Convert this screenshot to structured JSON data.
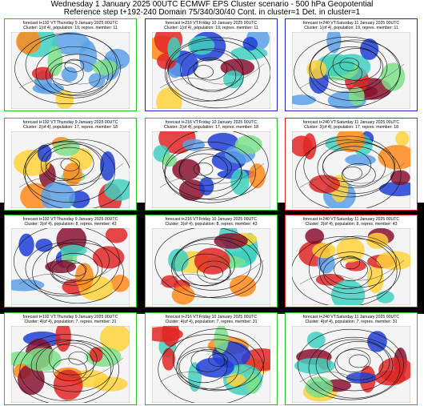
{
  "header": {
    "title": "Wednesday 1 January 2025 00UTC ECMWF EPS Cluster scenario - 500 hPa Geopotential",
    "subtitle": "Reference step t+192-240 Domain 75/340/30/40 Cont. in cluster=1 Det. in cluster=1"
  },
  "panels": [
    {
      "forecast": "forecast t+192 VT:Thursday 9 January 2025 00UTC",
      "cluster": "Cluster: 1(of 4), population: 19, repres. member: 11",
      "border_color": "#22c422"
    },
    {
      "forecast": "forecast t+216 VT:Friday 10 January 2025 00UTC",
      "cluster": "Cluster: 1(of 4), population: 19, repres. member: 11",
      "border_color": "#2222c4"
    },
    {
      "forecast": "forecast t+240 VT:Saturday 11 January 2025 00UTC",
      "cluster": "Cluster: 1(of 4), population: 19, repres. member: 11",
      "border_color": "#2222c4"
    },
    {
      "forecast": "forecast t+192 VT:Thursday 9 January 2025 00UTC",
      "cluster": "Cluster: 2(of 4), population: 17, repres. member: 18",
      "border_color": "#22c422"
    },
    {
      "forecast": "forecast t+216 VT:Friday 10 January 2025 00UTC",
      "cluster": "Cluster: 2(of 4), population: 17, repres. member: 18",
      "border_color": "#22c422"
    },
    {
      "forecast": "forecast t+240 VT:Saturday 11 January 2025 00UTC",
      "cluster": "Cluster: 2(of 4), population: 17, repres. member: 18",
      "border_color": "#d42222"
    },
    {
      "forecast": "forecast t+192 VT:Thursday 9 January 2025 00UTC",
      "cluster": "Cluster: 3(of 4), population: 8, repres. member: 43",
      "border_color": "#22c422"
    },
    {
      "forecast": "forecast t+216 VT:Friday 10 January 2025 00UTC",
      "cluster": "Cluster: 3(of 4), population: 8, repres. member: 43",
      "border_color": "#22c422"
    },
    {
      "forecast": "forecast t+240 VT:Saturday 11 January 2025 00UTC",
      "cluster": "Cluster: 3(of 4), population: 8, repres. member: 43",
      "border_color": "#d42222"
    },
    {
      "forecast": "forecast t+192 VT:Thursday 9 January 2025 00UTC",
      "cluster": "Cluster: 4(of 4), population: 7, repres. member: 31",
      "border_color": "#22c422"
    },
    {
      "forecast": "forecast t+216 VT:Friday 10 January 2025 00UTC",
      "cluster": "Cluster: 4(of 4), population: 7, repres. member: 31",
      "border_color": "#22c422"
    },
    {
      "forecast": "forecast t+240 VT:Saturday 11 January 2025 00UTC",
      "cluster": "Cluster: 4(of 4), population: 7, repres. member: 31",
      "border_color": "#22c422"
    }
  ]
}
